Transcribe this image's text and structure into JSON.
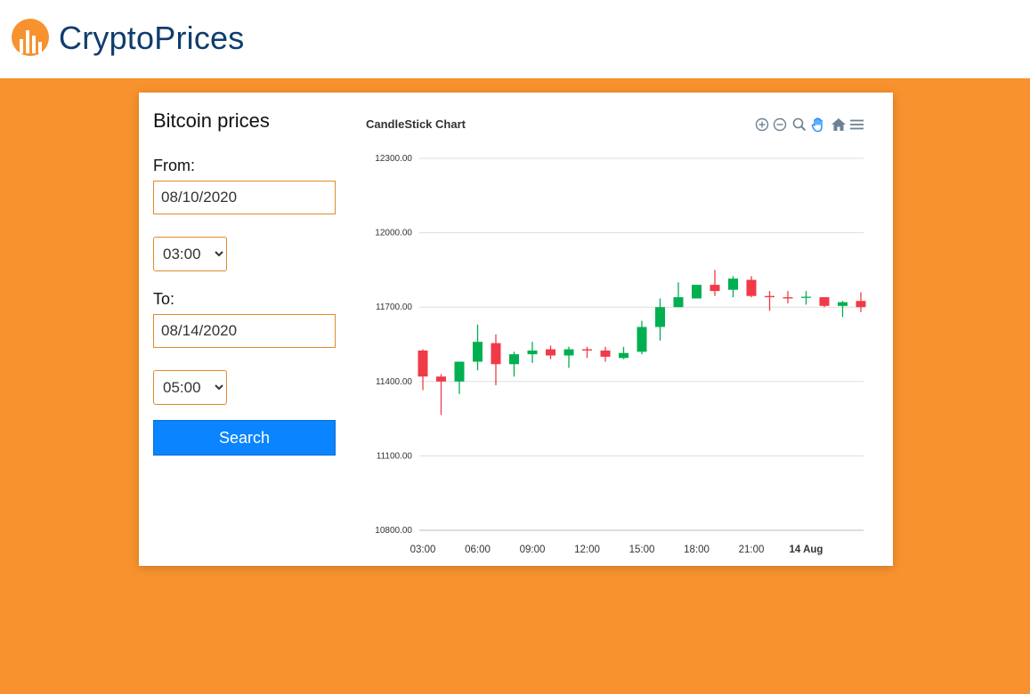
{
  "header": {
    "logo_text": "CryptoPrices",
    "logo_icon": "bar-chart-circle-icon",
    "logo_color": "#f7922e",
    "text_color": "#0f3d6e"
  },
  "theme": {
    "background": "#f7922e",
    "accent": "#0a84ff",
    "input_border": "#e08a2c"
  },
  "form": {
    "title": "Bitcoin prices",
    "from_label": "From:",
    "from_date": "08/10/2020",
    "from_time": "03:00",
    "to_label": "To:",
    "to_date": "08/14/2020",
    "to_time": "05:00",
    "search_label": "Search"
  },
  "chart_toolbar": {
    "icons": [
      "zoom-in-icon",
      "zoom-out-icon",
      "zoom-selection-icon",
      "pan-hand-icon",
      "home-reset-icon",
      "menu-icon"
    ]
  },
  "chart_data": {
    "type": "candlestick",
    "title": "CandleStick Chart",
    "ylim": [
      10800,
      12300
    ],
    "y_ticks": [
      "12300.00",
      "12000.00",
      "11700.00",
      "11400.00",
      "11100.00",
      "10800.00"
    ],
    "x_ticks": [
      "03:00",
      "06:00",
      "09:00",
      "12:00",
      "15:00",
      "18:00",
      "21:00",
      "14 Aug"
    ],
    "x_tick_bold": [
      false,
      false,
      false,
      false,
      false,
      false,
      false,
      true
    ],
    "up_color": "#00b050",
    "down_color": "#f13a47",
    "grid": true,
    "series": [
      {
        "time": "03:00",
        "open": 11525,
        "high": 11530,
        "low": 11365,
        "close": 11420
      },
      {
        "time": "04:00",
        "open": 11420,
        "high": 11430,
        "low": 11265,
        "close": 11400
      },
      {
        "time": "05:00",
        "open": 11400,
        "high": 11480,
        "low": 11350,
        "close": 11480
      },
      {
        "time": "06:00",
        "open": 11480,
        "high": 11630,
        "low": 11445,
        "close": 11560
      },
      {
        "time": "07:00",
        "open": 11555,
        "high": 11590,
        "low": 11385,
        "close": 11470
      },
      {
        "time": "08:00",
        "open": 11470,
        "high": 11520,
        "low": 11420,
        "close": 11510
      },
      {
        "time": "09:00",
        "open": 11510,
        "high": 11560,
        "low": 11475,
        "close": 11525
      },
      {
        "time": "10:00",
        "open": 11530,
        "high": 11545,
        "low": 11490,
        "close": 11505
      },
      {
        "time": "11:00",
        "open": 11505,
        "high": 11540,
        "low": 11455,
        "close": 11530
      },
      {
        "time": "12:00",
        "open": 11530,
        "high": 11540,
        "low": 11495,
        "close": 11525
      },
      {
        "time": "13:00",
        "open": 11525,
        "high": 11540,
        "low": 11480,
        "close": 11500
      },
      {
        "time": "14:00",
        "open": 11495,
        "high": 11540,
        "low": 11490,
        "close": 11515
      },
      {
        "time": "15:00",
        "open": 11520,
        "high": 11645,
        "low": 11510,
        "close": 11620
      },
      {
        "time": "16:00",
        "open": 11620,
        "high": 11735,
        "low": 11565,
        "close": 11700
      },
      {
        "time": "17:00",
        "open": 11700,
        "high": 11800,
        "low": 11700,
        "close": 11740
      },
      {
        "time": "18:00",
        "open": 11735,
        "high": 11790,
        "low": 11735,
        "close": 11790
      },
      {
        "time": "19:00",
        "open": 11790,
        "high": 11850,
        "low": 11745,
        "close": 11765
      },
      {
        "time": "20:00",
        "open": 11770,
        "high": 11825,
        "low": 11740,
        "close": 11815
      },
      {
        "time": "21:00",
        "open": 11810,
        "high": 11825,
        "low": 11740,
        "close": 11745
      },
      {
        "time": "22:00",
        "open": 11745,
        "high": 11765,
        "low": 11685,
        "close": 11740
      },
      {
        "time": "23:00",
        "open": 11740,
        "high": 11765,
        "low": 11715,
        "close": 11735
      },
      {
        "time": "00:00",
        "open": 11740,
        "high": 11765,
        "low": 11710,
        "close": 11742
      },
      {
        "time": "01:00",
        "open": 11740,
        "high": 11740,
        "low": 11700,
        "close": 11705
      },
      {
        "time": "02:00",
        "open": 11705,
        "high": 11725,
        "low": 11660,
        "close": 11720
      },
      {
        "time": "03:00",
        "open": 11725,
        "high": 11760,
        "low": 11680,
        "close": 11700
      }
    ]
  }
}
